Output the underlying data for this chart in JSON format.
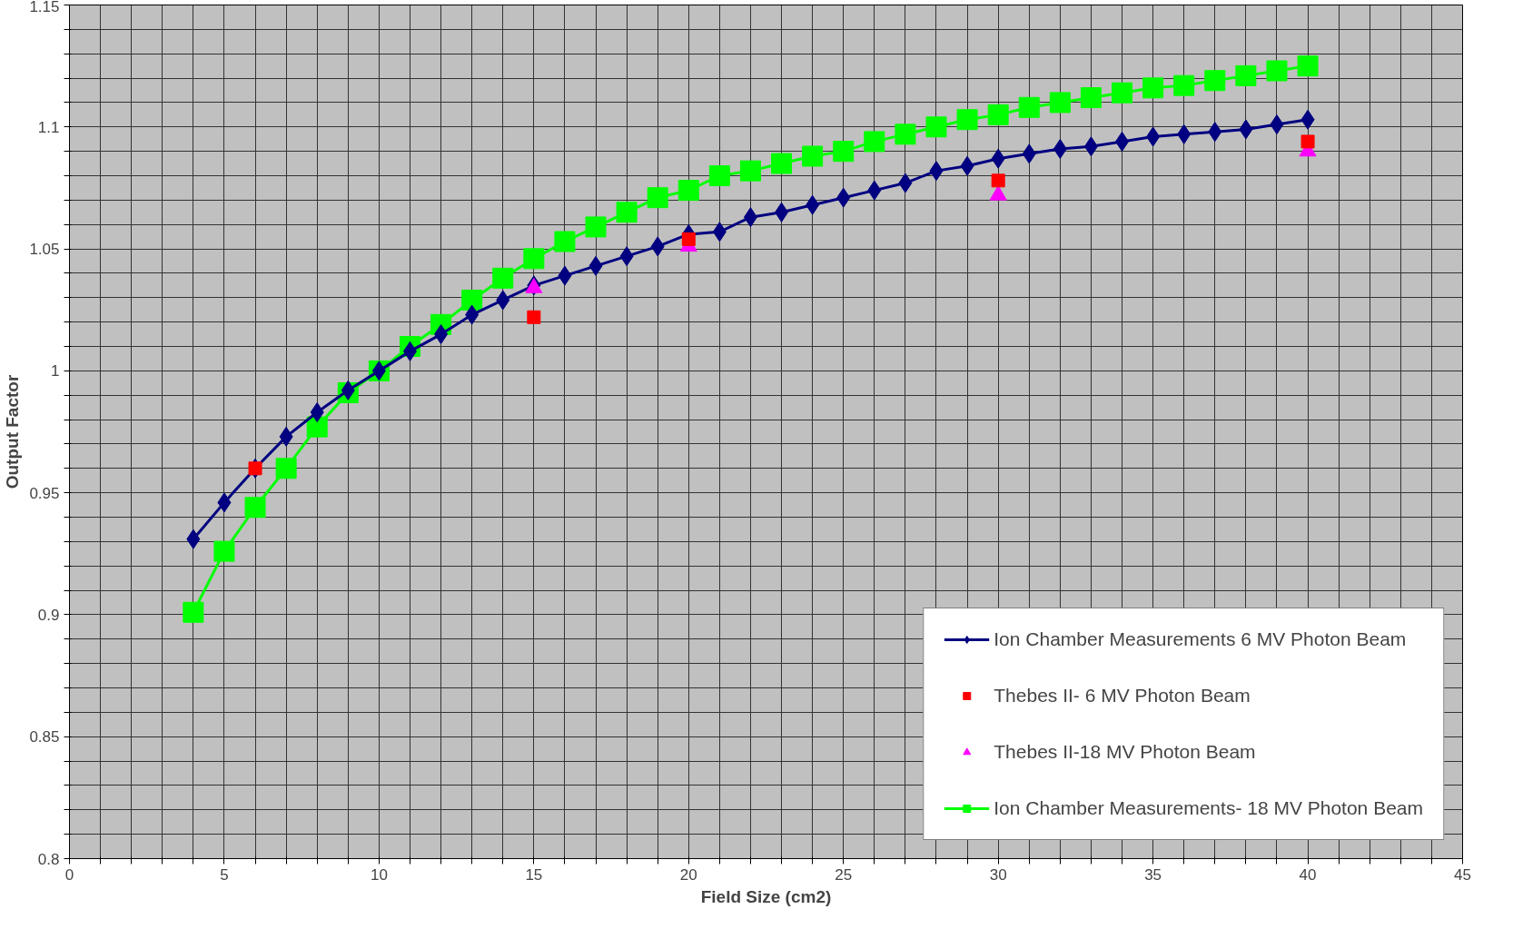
{
  "chart_data": {
    "type": "line",
    "xlabel": "Field Size (cm2)",
    "ylabel": "Output Factor",
    "xlim": [
      0,
      45
    ],
    "ylim": [
      0.8,
      1.15
    ],
    "xticks": [
      0,
      {
        "value": 1,
        "label": null
      },
      {
        "value": 2,
        "label": null
      },
      {
        "value": 3,
        "label": null
      },
      {
        "value": 4,
        "label": null
      },
      5,
      {
        "value": 6,
        "label": null
      },
      {
        "value": 7,
        "label": null
      },
      {
        "value": 8,
        "label": null
      },
      {
        "value": 9,
        "label": null
      },
      10,
      {
        "value": 11,
        "label": null
      },
      {
        "value": 12,
        "label": null
      },
      {
        "value": 13,
        "label": null
      },
      {
        "value": 14,
        "label": null
      },
      15,
      {
        "value": 16,
        "label": null
      },
      {
        "value": 17,
        "label": null
      },
      {
        "value": 18,
        "label": null
      },
      {
        "value": 19,
        "label": null
      },
      20,
      {
        "value": 21,
        "label": null
      },
      {
        "value": 22,
        "label": null
      },
      {
        "value": 23,
        "label": null
      },
      {
        "value": 24,
        "label": null
      },
      25,
      {
        "value": 26,
        "label": null
      },
      {
        "value": 27,
        "label": null
      },
      {
        "value": 28,
        "label": null
      },
      {
        "value": 29,
        "label": null
      },
      30,
      {
        "value": 31,
        "label": null
      },
      {
        "value": 32,
        "label": null
      },
      {
        "value": 33,
        "label": null
      },
      {
        "value": 34,
        "label": null
      },
      35,
      {
        "value": 36,
        "label": null
      },
      {
        "value": 37,
        "label": null
      },
      {
        "value": 38,
        "label": null
      },
      {
        "value": 39,
        "label": null
      },
      40,
      {
        "value": 41,
        "label": null
      },
      {
        "value": 42,
        "label": null
      },
      {
        "value": 43,
        "label": null
      },
      {
        "value": 44,
        "label": null
      },
      45
    ],
    "yticks": [
      0.8,
      {
        "value": 0.81,
        "label": null
      },
      {
        "value": 0.82,
        "label": null
      },
      {
        "value": 0.83,
        "label": null
      },
      {
        "value": 0.84,
        "label": null
      },
      0.85,
      {
        "value": 0.86,
        "label": null
      },
      {
        "value": 0.87,
        "label": null
      },
      {
        "value": 0.88,
        "label": null
      },
      {
        "value": 0.89,
        "label": null
      },
      0.9,
      {
        "value": 0.91,
        "label": null
      },
      {
        "value": 0.92,
        "label": null
      },
      {
        "value": 0.93,
        "label": null
      },
      {
        "value": 0.94,
        "label": null
      },
      0.95,
      {
        "value": 0.96,
        "label": null
      },
      {
        "value": 0.97,
        "label": null
      },
      {
        "value": 0.98,
        "label": null
      },
      {
        "value": 0.99,
        "label": null
      },
      1,
      {
        "value": 1.01,
        "label": null
      },
      {
        "value": 1.02,
        "label": null
      },
      {
        "value": 1.03,
        "label": null
      },
      {
        "value": 1.04,
        "label": null
      },
      1.05,
      {
        "value": 1.06,
        "label": null
      },
      {
        "value": 1.07,
        "label": null
      },
      {
        "value": 1.08,
        "label": null
      },
      {
        "value": 1.09,
        "label": null
      },
      1.1,
      {
        "value": 1.11,
        "label": null
      },
      {
        "value": 1.12,
        "label": null
      },
      {
        "value": 1.13,
        "label": null
      },
      {
        "value": 1.14,
        "label": null
      },
      1.15
    ],
    "grid": true,
    "legend": "bottom right",
    "series": [
      {
        "name": "Ion Chamber Measurements 6 MV Photon Beam",
        "marker": "diamond",
        "color": "#000080",
        "x": [
          4,
          5,
          6,
          7,
          8,
          9,
          10,
          11,
          12,
          13,
          14,
          15,
          16,
          17,
          18,
          19,
          20,
          21,
          22,
          23,
          24,
          25,
          26,
          27,
          28,
          29,
          30,
          31,
          32,
          33,
          34,
          35,
          36,
          37,
          38,
          39,
          40
        ],
        "values": [
          0.931,
          0.946,
          0.96,
          0.973,
          0.983,
          0.992,
          1.0,
          1.008,
          1.015,
          1.023,
          1.029,
          1.035,
          1.039,
          1.043,
          1.047,
          1.051,
          1.056,
          1.057,
          1.063,
          1.065,
          1.068,
          1.071,
          1.074,
          1.077,
          1.082,
          1.084,
          1.087,
          1.089,
          1.091,
          1.092,
          1.094,
          1.096,
          1.097,
          1.098,
          1.099,
          1.101,
          1.103
        ]
      },
      {
        "name": "Thebes II- 6 MV Photon Beam",
        "type": "scatter",
        "marker": "square",
        "color": "#ff0000",
        "x": [
          6,
          15,
          20,
          30,
          40
        ],
        "values": [
          0.96,
          1.022,
          1.054,
          1.078,
          1.094
        ]
      },
      {
        "name": "Thebes II-18 MV Photon Beam",
        "type": "scatter",
        "marker": "triangle",
        "color": "#ff00ff",
        "x": [
          15,
          20,
          30,
          40
        ],
        "values": [
          1.034,
          1.051,
          1.072,
          1.09
        ]
      },
      {
        "name": "Ion Chamber Measurements- 18 MV Photon Beam",
        "marker": "square",
        "color": "#00ff00",
        "x": [
          4,
          5,
          6,
          7,
          8,
          9,
          10,
          11,
          12,
          13,
          14,
          15,
          16,
          17,
          18,
          19,
          20,
          21,
          22,
          23,
          24,
          25,
          26,
          27,
          28,
          29,
          30,
          31,
          32,
          33,
          34,
          35,
          36,
          37,
          38,
          39,
          40
        ],
        "values": [
          0.901,
          0.926,
          0.944,
          0.96,
          0.977,
          0.991,
          1.0,
          1.01,
          1.019,
          1.029,
          1.038,
          1.046,
          1.053,
          1.059,
          1.065,
          1.071,
          1.074,
          1.08,
          1.082,
          1.085,
          1.088,
          1.09,
          1.094,
          1.097,
          1.1,
          1.103,
          1.105,
          1.108,
          1.11,
          1.112,
          1.114,
          1.116,
          1.117,
          1.119,
          1.121,
          1.123,
          1.125
        ]
      }
    ]
  }
}
